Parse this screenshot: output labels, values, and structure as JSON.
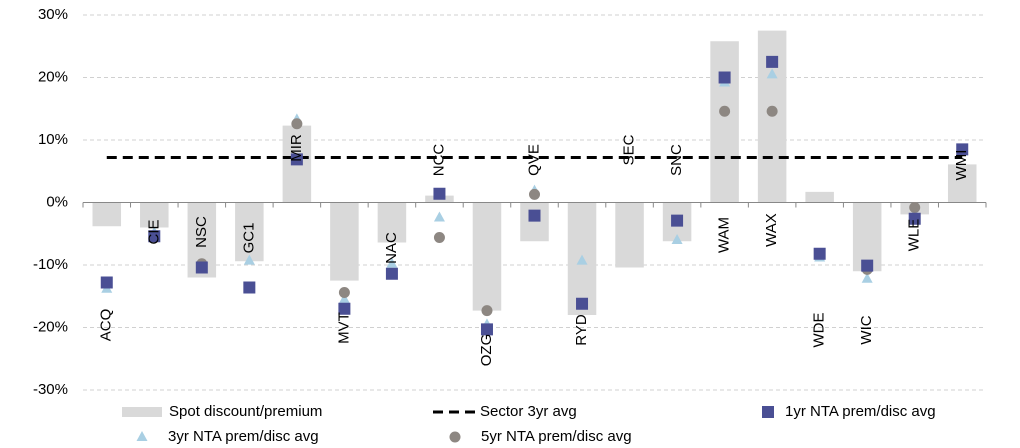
{
  "chart_data": {
    "type": "combo",
    "categories": [
      "ACQ",
      "CIE",
      "NSC",
      "GC1",
      "MIR",
      "MVT",
      "NAC",
      "NCC",
      "OZG",
      "QVE",
      "RYD",
      "SEC",
      "SNC",
      "WAM",
      "WAX",
      "WDE",
      "WIC",
      "WLE",
      "WMI"
    ],
    "ylim": [
      -30,
      30
    ],
    "yticks": [
      {
        "value": -30,
        "label": "-30%"
      },
      {
        "value": -20,
        "label": "-20%"
      },
      {
        "value": -10,
        "label": "-10%"
      },
      {
        "value": 0,
        "label": "0%"
      },
      {
        "value": 10,
        "label": "10%"
      },
      {
        "value": 20,
        "label": "20%"
      },
      {
        "value": 30,
        "label": "30%"
      }
    ],
    "grid": true,
    "legend": "bottom",
    "series": [
      {
        "name": "Spot discount/premium",
        "kind": "bar",
        "color": "#d9d9d9",
        "values": [
          -3.8,
          -4,
          -12,
          -9.4,
          12.3,
          -12.5,
          -6.4,
          1.1,
          -17.3,
          -6.2,
          -18,
          -10.4,
          -6.2,
          25.8,
          27.5,
          1.7,
          -11,
          -1.9,
          6.1
        ]
      },
      {
        "name": "Sector 3yr avg",
        "kind": "dashed-line",
        "color": "#000000",
        "values": [
          7.2,
          7.2,
          7.2,
          7.2,
          7.2,
          7.2,
          7.2,
          7.2,
          7.2,
          7.2,
          7.2,
          7.2,
          7.2,
          7.2,
          7.2,
          7.2,
          7.2,
          7.2,
          7.2
        ]
      },
      {
        "name": "1yr NTA prem/disc avg",
        "kind": "square",
        "color": "#4a4f94",
        "values": [
          -12.8,
          -5.4,
          -10.4,
          -13.6,
          6.9,
          -17,
          -11.4,
          1.4,
          -20.3,
          -2.1,
          -16.2,
          null,
          -2.9,
          20,
          22.5,
          -8.2,
          -10.1,
          -2.6,
          8.5
        ]
      },
      {
        "name": "3yr NTA prem/disc avg",
        "kind": "triangle",
        "color": "#a9cfe3",
        "values": [
          -13.8,
          -4.8,
          -10.2,
          -9.3,
          13.3,
          -15.5,
          -9.8,
          -2.4,
          -19.5,
          1.9,
          -9.3,
          null,
          -6,
          19.2,
          20.5,
          -8.8,
          -12.2,
          -1.8,
          null
        ]
      },
      {
        "name": "5yr NTA prem/disc avg",
        "kind": "circle",
        "color": "#8d8782",
        "values": [
          null,
          null,
          -9.8,
          null,
          12.6,
          -14.4,
          null,
          -5.6,
          -17.3,
          1.3,
          null,
          null,
          null,
          14.6,
          14.6,
          null,
          -10.7,
          -0.8,
          null
        ]
      }
    ]
  }
}
